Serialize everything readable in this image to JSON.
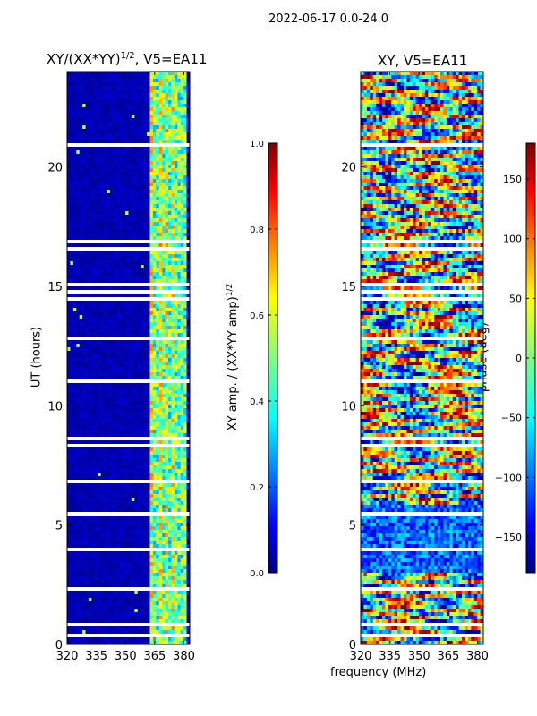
{
  "suptitle": "2022-06-17 0.0-24.0",
  "colors": {
    "background": "#ffffff",
    "white_gaps": "#ffffff",
    "cmap": [
      "#00007f",
      "#0000ff",
      "#007fff",
      "#00ffff",
      "#7fff7f",
      "#ffff00",
      "#ff7f00",
      "#ff0000",
      "#7f0000"
    ]
  },
  "chart_data": [
    {
      "type": "heatmap",
      "title_main": "XY/(XX*YY)",
      "title_exp": "1/2",
      "title_suffix": ", V5=EA11",
      "xlabel": "",
      "ylabel": "UT (hours)",
      "xlim": [
        320,
        383
      ],
      "ylim": [
        0,
        24
      ],
      "xticks": [
        "320",
        "335",
        "350",
        "365",
        "380"
      ],
      "xtick_values": [
        320,
        335,
        350,
        365,
        380
      ],
      "yticks": [
        "0",
        "5",
        "10",
        "15",
        "20"
      ],
      "ytick_values": [
        0,
        5,
        10,
        15,
        20
      ],
      "colorbar": {
        "label_main": "XY amp. / (XX*YY amp)",
        "label_exp": "1/2",
        "range": [
          0.0,
          1.0
        ],
        "ticks": [
          "0.0",
          "0.2",
          "0.4",
          "0.6",
          "0.8",
          "1.0"
        ],
        "tick_values": [
          0.0,
          0.2,
          0.4,
          0.6,
          0.8,
          1.0
        ]
      }
    },
    {
      "type": "heatmap",
      "title": "XY, V5=EA11",
      "xlabel": "frequency (MHz)",
      "ylabel": "",
      "xlim": [
        320,
        383
      ],
      "ylim": [
        0,
        24
      ],
      "xticks": [
        "320",
        "335",
        "350",
        "365",
        "380"
      ],
      "xtick_values": [
        320,
        335,
        350,
        365,
        380
      ],
      "yticks": [
        "0",
        "5",
        "10",
        "15",
        "20"
      ],
      "ytick_values": [
        0,
        5,
        10,
        15,
        20
      ],
      "colorbar": {
        "label": "phase (deg)",
        "range": [
          -180,
          180
        ],
        "ticks": [
          "−150",
          "−100",
          "−50",
          "0",
          "50",
          "100",
          "150"
        ],
        "tick_values": [
          -150,
          -100,
          -50,
          0,
          50,
          100,
          150
        ]
      }
    }
  ]
}
